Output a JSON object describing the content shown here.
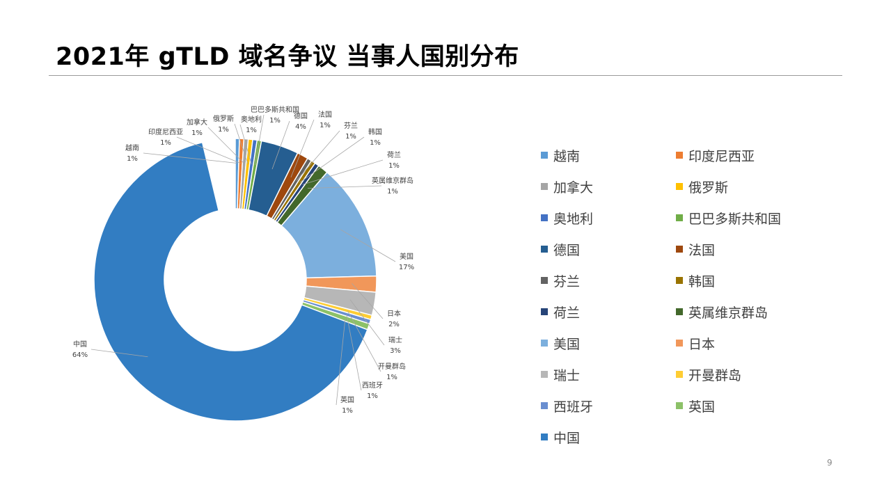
{
  "title": "2021年 gTLD 域名争议 当事人国别分布",
  "page_number": "9",
  "chart_data": {
    "type": "pie",
    "subtype": "doughnut",
    "legend_position": "right",
    "slices": [
      {
        "name": "越南",
        "value": 1,
        "label": "1%",
        "color": "#5B9BD5"
      },
      {
        "name": "印度尼西亚",
        "value": 1,
        "label": "1%",
        "color": "#ED7D31"
      },
      {
        "name": "加拿大",
        "value": 1,
        "label": "1%",
        "color": "#A5A5A5"
      },
      {
        "name": "俄罗斯",
        "value": 1,
        "label": "1%",
        "color": "#FFC000"
      },
      {
        "name": "奥地利",
        "value": 1,
        "label": "1%",
        "color": "#4472C4"
      },
      {
        "name": "巴巴多斯共和国",
        "value": 1,
        "label": "1%",
        "color": "#70AD47"
      },
      {
        "name": "德国",
        "value": 4,
        "label": "4%",
        "color": "#255E91"
      },
      {
        "name": "法国",
        "value": 1,
        "label": "1%",
        "color": "#9E480E"
      },
      {
        "name": "芬兰",
        "value": 1,
        "label": "1%",
        "color": "#636363"
      },
      {
        "name": "韩国",
        "value": 1,
        "label": "1%",
        "color": "#997300"
      },
      {
        "name": "荷兰",
        "value": 1,
        "label": "1%",
        "color": "#264478"
      },
      {
        "name": "英属维京群岛",
        "value": 1,
        "label": "1%",
        "color": "#43682B"
      },
      {
        "name": "美国",
        "value": 17,
        "label": "17%",
        "color": "#7CAFDD"
      },
      {
        "name": "日本",
        "value": 2,
        "label": "2%",
        "color": "#F1975A"
      },
      {
        "name": "瑞士",
        "value": 3,
        "label": "3%",
        "color": "#B7B7B7"
      },
      {
        "name": "开曼群岛",
        "value": 1,
        "label": "1%",
        "color": "#FFCD33"
      },
      {
        "name": "西班牙",
        "value": 1,
        "label": "1%",
        "color": "#698ED0"
      },
      {
        "name": "英国",
        "value": 1,
        "label": "1%",
        "color": "#8CC168"
      },
      {
        "name": "中国",
        "value": 64,
        "label": "64%",
        "color": "#327DC2"
      }
    ]
  }
}
